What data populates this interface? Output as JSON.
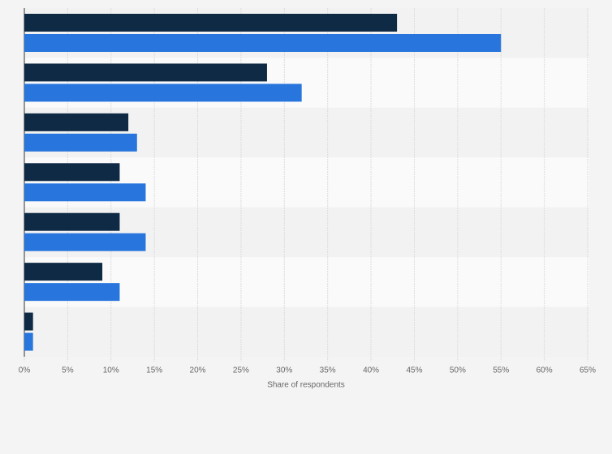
{
  "chart_data": {
    "type": "hbar",
    "categories": [
      null,
      null,
      null,
      null,
      null,
      null,
      null
    ],
    "series": [
      {
        "color": "#0f2a44",
        "values": [
          43,
          28,
          12,
          11,
          11,
          9,
          1
        ]
      },
      {
        "color": "#2876dd",
        "values": [
          55,
          32,
          13,
          14,
          14,
          11,
          1
        ]
      }
    ],
    "x_label": "Share of respondents",
    "xlim": [
      0,
      65
    ],
    "xticks": [
      {
        "value": 0,
        "label": "0%"
      },
      {
        "value": 5,
        "label": "5%"
      },
      {
        "value": 10,
        "label": "10%"
      },
      {
        "value": 15,
        "label": "15%"
      },
      {
        "value": 20,
        "label": "20%"
      },
      {
        "value": 25,
        "label": "25%"
      },
      {
        "value": 30,
        "label": "30%"
      },
      {
        "value": 35,
        "label": "35%"
      },
      {
        "value": 40,
        "label": "40%"
      },
      {
        "value": 45,
        "label": "45%"
      },
      {
        "value": 50,
        "label": "50%"
      },
      {
        "value": 55,
        "label": "55%"
      },
      {
        "value": 60,
        "label": "60%"
      },
      {
        "value": 65,
        "label": "65%"
      }
    ],
    "grid": true
  }
}
